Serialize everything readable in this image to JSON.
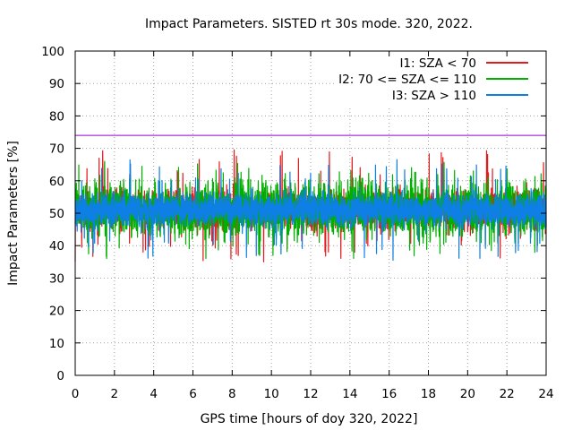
{
  "chart_data": {
    "type": "line",
    "title": "Impact Parameters. SISTED rt 30s mode. 320, 2022.",
    "xlabel": "GPS time [hours of doy 320, 2022]",
    "ylabel": "Impact Parameters [%]",
    "xlim": [
      0,
      24
    ],
    "ylim": [
      0,
      100
    ],
    "x_ticks": [
      "0",
      "2",
      "4",
      "6",
      "8",
      "10",
      "12",
      "14",
      "16",
      "18",
      "20",
      "22",
      "24"
    ],
    "y_ticks": [
      "0",
      "10",
      "20",
      "30",
      "40",
      "50",
      "60",
      "70",
      "80",
      "90",
      "100"
    ],
    "grid": true,
    "legend_position": "top-right",
    "reference_line": {
      "y": 74,
      "color": "#9400d3"
    },
    "series": [
      {
        "name": "I1: SZA < 70",
        "color": "#e41a1c",
        "x_range": [
          0,
          24
        ],
        "typical_low": 45,
        "typical_high": 57,
        "extreme_low": 35,
        "extreme_high": 69.5,
        "peak_hours": [
          8.1,
          9.6
        ],
        "dip_hours": [
          9.6,
          0.0
        ]
      },
      {
        "name": "I2: 70 <= SZA <= 110",
        "color": "#00b000",
        "x_range": [
          0,
          24
        ],
        "typical_low": 43,
        "typical_high": 59,
        "extreme_low": 36,
        "extreme_high": 66,
        "peak_hours": [
          1.5
        ],
        "dip_hours": [
          1.6
        ]
      },
      {
        "name": "I3: SZA > 110",
        "color": "#0d7fe5",
        "x_range": [
          0,
          24
        ],
        "typical_low": 46,
        "typical_high": 56,
        "extreme_low": 35.5,
        "extreme_high": 66.5,
        "peak_hours": [
          16.4
        ],
        "dip_hours": [
          16.2
        ]
      }
    ]
  }
}
